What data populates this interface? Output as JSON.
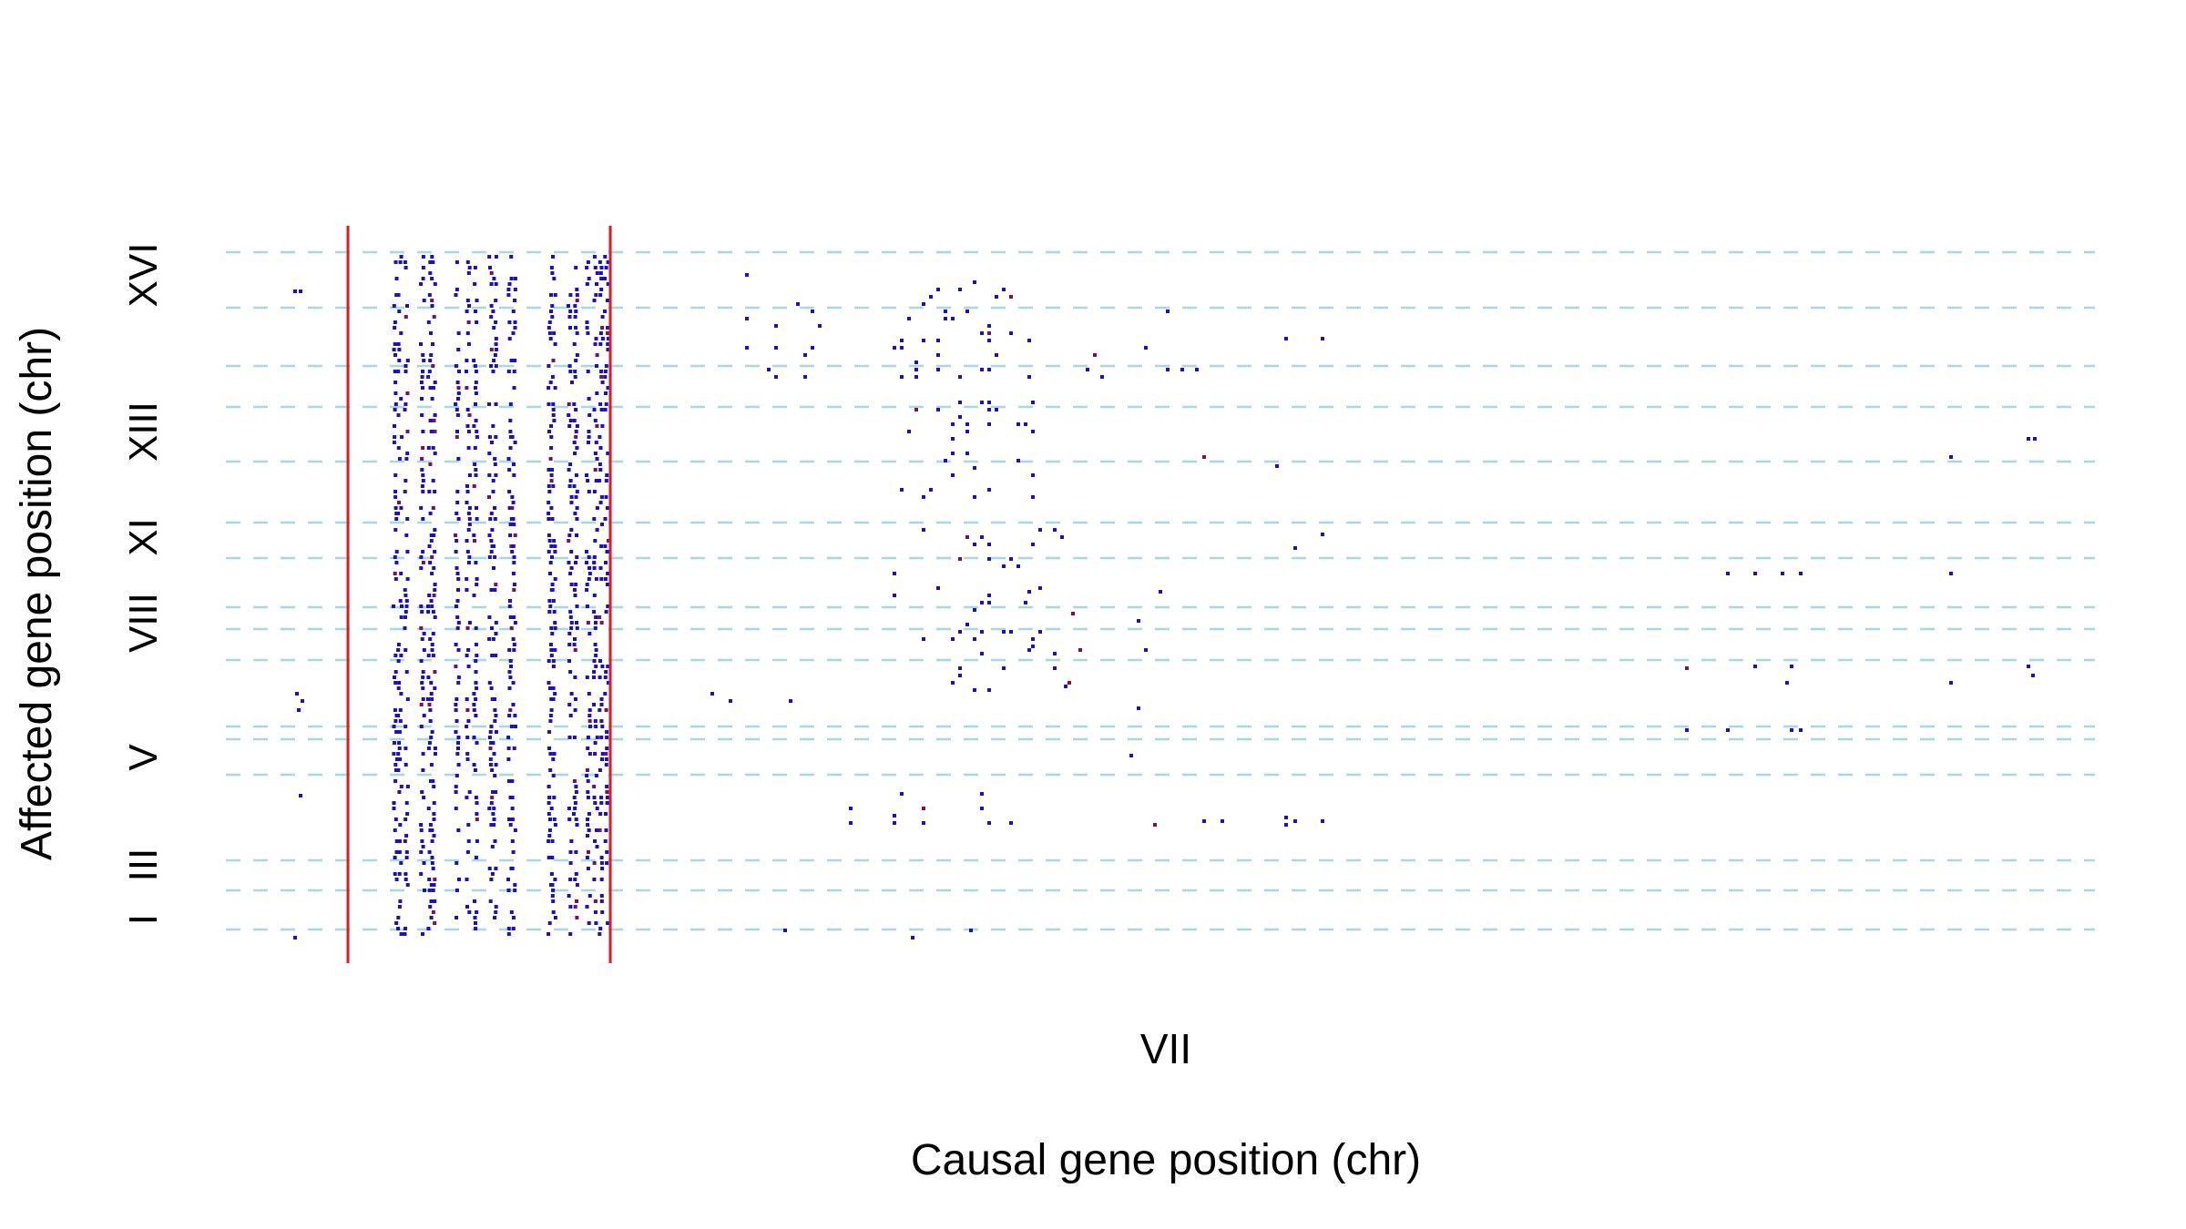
{
  "chart_data": {
    "type": "scatter",
    "title": "",
    "xlabel": "Causal gene position (chr)",
    "ylabel": "Affected gene position (chr)",
    "x_tick_labels": [
      "VII"
    ],
    "y_tick_labels": [
      "I",
      "III",
      "V",
      "VIII",
      "XI",
      "XIII",
      "XVI"
    ],
    "grid": "dashed horizontal lines at chromosome boundaries",
    "highlight_lines": "two vertical red lines bounding a region on the causal axis",
    "colors": {
      "points": "#1a10c8",
      "points_strong": "#7a1060",
      "grid": "#a6d8e6",
      "highlight": "#e8191c"
    },
    "legend": "none"
  }
}
